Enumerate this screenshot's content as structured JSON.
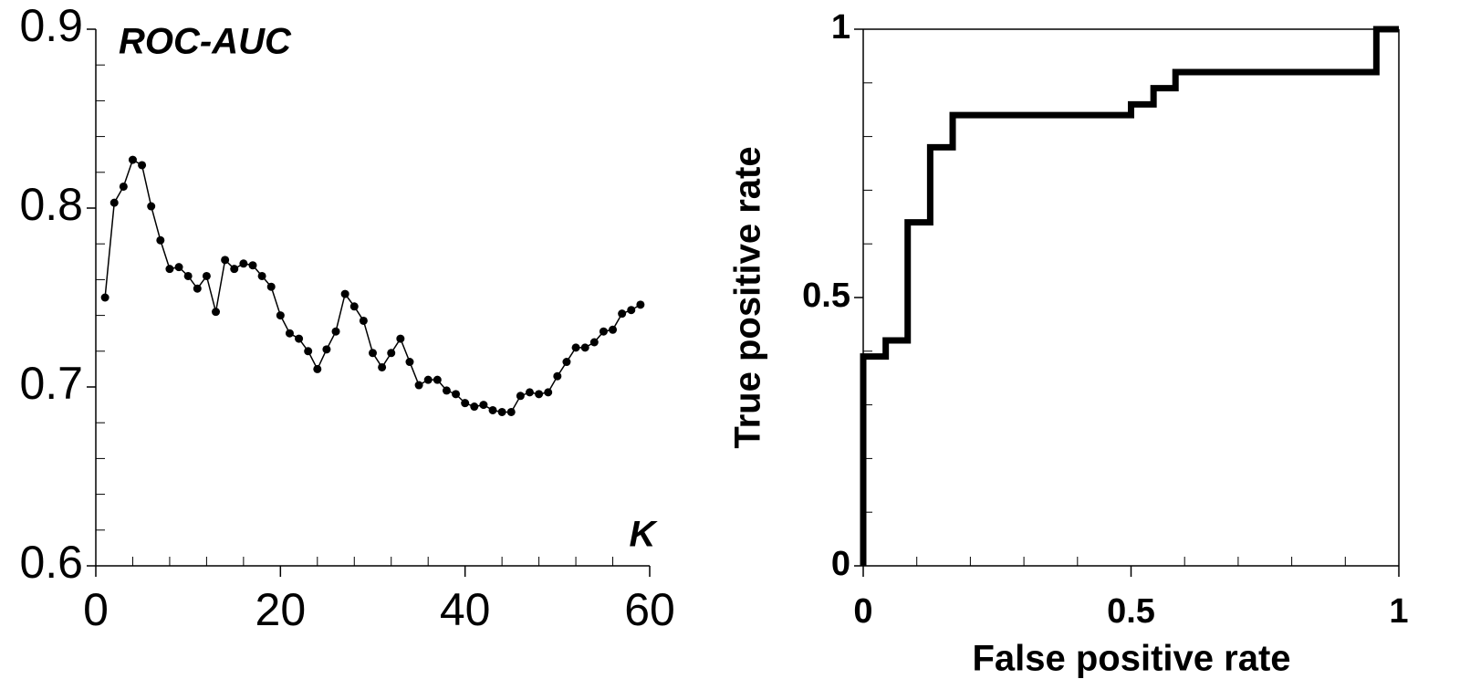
{
  "chart_data": [
    {
      "type": "line",
      "annotation": "ROC-AUC",
      "xlabel": "K",
      "x": [
        1,
        2,
        3,
        4,
        5,
        6,
        7,
        8,
        9,
        10,
        11,
        12,
        13,
        14,
        15,
        16,
        17,
        18,
        19,
        20,
        21,
        22,
        23,
        24,
        25,
        26,
        27,
        28,
        29,
        30,
        31,
        32,
        33,
        34,
        35,
        36,
        37,
        38,
        39,
        40,
        41,
        42,
        43,
        44,
        45,
        46,
        47,
        48,
        49,
        50,
        51,
        52,
        53,
        54,
        55,
        56,
        57,
        58,
        59
      ],
      "values": [
        0.75,
        0.803,
        0.812,
        0.827,
        0.824,
        0.801,
        0.782,
        0.766,
        0.767,
        0.762,
        0.755,
        0.762,
        0.742,
        0.771,
        0.766,
        0.769,
        0.768,
        0.762,
        0.756,
        0.74,
        0.73,
        0.727,
        0.72,
        0.71,
        0.721,
        0.731,
        0.752,
        0.745,
        0.737,
        0.719,
        0.711,
        0.719,
        0.727,
        0.714,
        0.701,
        0.704,
        0.704,
        0.698,
        0.696,
        0.691,
        0.689,
        0.69,
        0.687,
        0.686,
        0.686,
        0.695,
        0.697,
        0.696,
        0.697,
        0.706,
        0.714,
        0.722,
        0.722,
        0.725,
        0.731,
        0.732,
        0.741,
        0.743,
        0.746
      ],
      "color": "#000000",
      "markers": true,
      "xlim": [
        0,
        60
      ],
      "xticks": [
        0,
        20,
        40,
        60
      ],
      "xticks_minor": [
        4,
        8,
        12,
        16,
        24,
        28,
        32,
        36,
        44,
        48,
        52,
        56
      ],
      "ylim": [
        0.6,
        0.9
      ],
      "yticks": [
        0.6,
        0.7,
        0.8,
        0.9
      ],
      "yticks_minor": [
        0.62,
        0.64,
        0.66,
        0.68,
        0.72,
        0.74,
        0.76,
        0.78,
        0.82,
        0.84,
        0.86,
        0.88
      ],
      "frame": false
    },
    {
      "type": "step",
      "xlabel": "False positive rate",
      "ylabel": "True positive rate",
      "x": [
        0,
        0,
        0.042,
        0.042,
        0.083,
        0.083,
        0.125,
        0.125,
        0.167,
        0.167,
        0.5,
        0.5,
        0.542,
        0.542,
        0.583,
        0.583,
        0.958,
        0.958,
        1
      ],
      "values": [
        0,
        0.39,
        0.39,
        0.42,
        0.42,
        0.64,
        0.64,
        0.78,
        0.78,
        0.84,
        0.84,
        0.86,
        0.86,
        0.89,
        0.89,
        0.92,
        0.92,
        1,
        1
      ],
      "color": "#000000",
      "markers": false,
      "xlim": [
        0,
        1
      ],
      "xticks": [
        0,
        0.5,
        1
      ],
      "xticks_minor": [
        0.1,
        0.2,
        0.3,
        0.4,
        0.6,
        0.7,
        0.8,
        0.9
      ],
      "ylim": [
        0,
        1
      ],
      "yticks": [
        0,
        0.5,
        1
      ],
      "yticks_minor": [
        0.1,
        0.2,
        0.3,
        0.4,
        0.6,
        0.7,
        0.8,
        0.9
      ],
      "frame": true
    }
  ]
}
